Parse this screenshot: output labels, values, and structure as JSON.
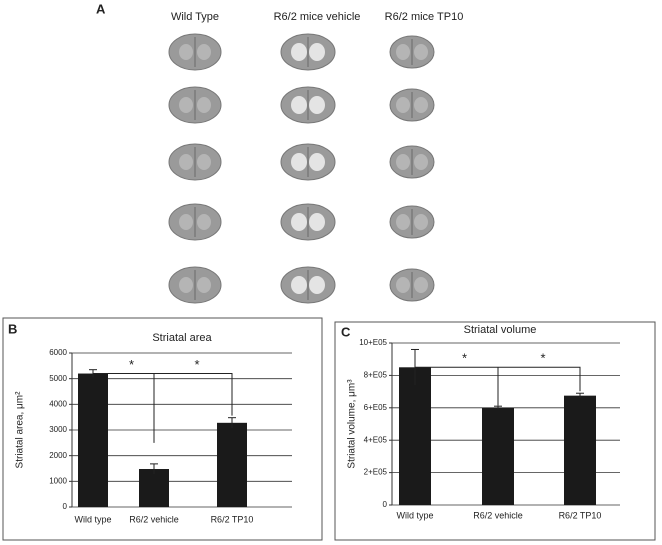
{
  "panel_a": {
    "label": "A",
    "columns": [
      "Wild Type",
      "R6/2 mice vehicle",
      "R6/2 mice TP10"
    ]
  },
  "chart_data": [
    {
      "type": "bar",
      "panel": "B",
      "title": "Striatal area",
      "y_label": "Striatal area, μm²",
      "categories": [
        "Wild type",
        "R6/2 vehicle",
        "R6/2 TP10"
      ],
      "values": [
        5200,
        1480,
        3280
      ],
      "errors": [
        150,
        200,
        200
      ],
      "color": "#1a1a1a",
      "ylim": [
        0,
        6000
      ],
      "yticks": [
        0,
        1000,
        2000,
        3000,
        4000,
        5000,
        6000
      ],
      "grid": true,
      "annotations": [
        "*",
        "*"
      ]
    },
    {
      "type": "bar",
      "panel": "C",
      "title": "Striatal volume",
      "y_label": "Striatal volume, μm³",
      "categories": [
        "Wild type",
        "R6/2 vehicle",
        "R6/2 TP10"
      ],
      "values": [
        850000,
        600000,
        675000
      ],
      "errors": [
        110000,
        10000,
        15000
      ],
      "color": "#1a1a1a",
      "ylim": [
        0,
        1000000
      ],
      "yticks": [
        0,
        {
          "value": 200000,
          "label": "2+E05"
        },
        {
          "value": 400000,
          "label": "4+E05"
        },
        {
          "value": 600000,
          "label": "6+E05"
        },
        {
          "value": 800000,
          "label": "8+E05"
        },
        {
          "value": 1000000,
          "label": "10+E05"
        }
      ],
      "grid": true,
      "annotations": [
        "*",
        "*"
      ]
    }
  ]
}
